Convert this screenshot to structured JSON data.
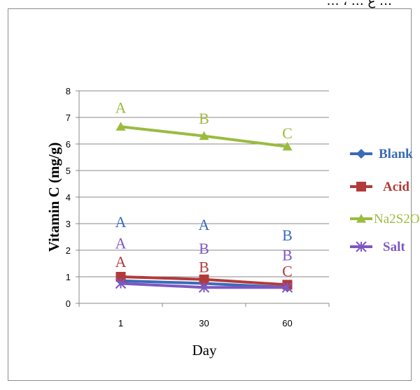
{
  "page": {
    "caption": "… ، … ع …"
  },
  "chart_data": {
    "type": "line",
    "title": "",
    "xlabel": "Day",
    "ylabel": "Vitamin C (mg/g)",
    "categories": [
      "1",
      "30",
      "60"
    ],
    "ylim": [
      0,
      8
    ],
    "yticks": [
      "0",
      "1",
      "2",
      "3",
      "4",
      "5",
      "6",
      "7",
      "8"
    ],
    "grid": true,
    "legend_position": "right",
    "series": [
      {
        "name": "Blank",
        "color": "#3a6bb8",
        "marker": "diamond",
        "values": [
          0.85,
          0.75,
          0.6
        ],
        "letters": [
          "A",
          "A",
          "B"
        ],
        "letter_y": [
          3.05,
          2.95,
          2.55
        ]
      },
      {
        "name": "Acid",
        "color": "#b33a3a",
        "marker": "square",
        "values": [
          1.0,
          0.9,
          0.7
        ],
        "letters": [
          "A",
          "B",
          "C"
        ],
        "letter_y": [
          1.55,
          1.35,
          1.2
        ]
      },
      {
        "name": "Na2S2O",
        "color": "#9bbb3f",
        "marker": "triangle",
        "values": [
          6.65,
          6.3,
          5.9
        ],
        "letters": [
          "A",
          "B",
          "C"
        ],
        "letter_y": [
          7.35,
          6.95,
          6.4
        ]
      },
      {
        "name": "Salt",
        "color": "#7e57c2",
        "marker": "star",
        "values": [
          0.75,
          0.6,
          0.6
        ],
        "letters": [
          "A",
          "B",
          "B"
        ],
        "letter_y": [
          2.25,
          2.05,
          1.8
        ]
      }
    ]
  }
}
